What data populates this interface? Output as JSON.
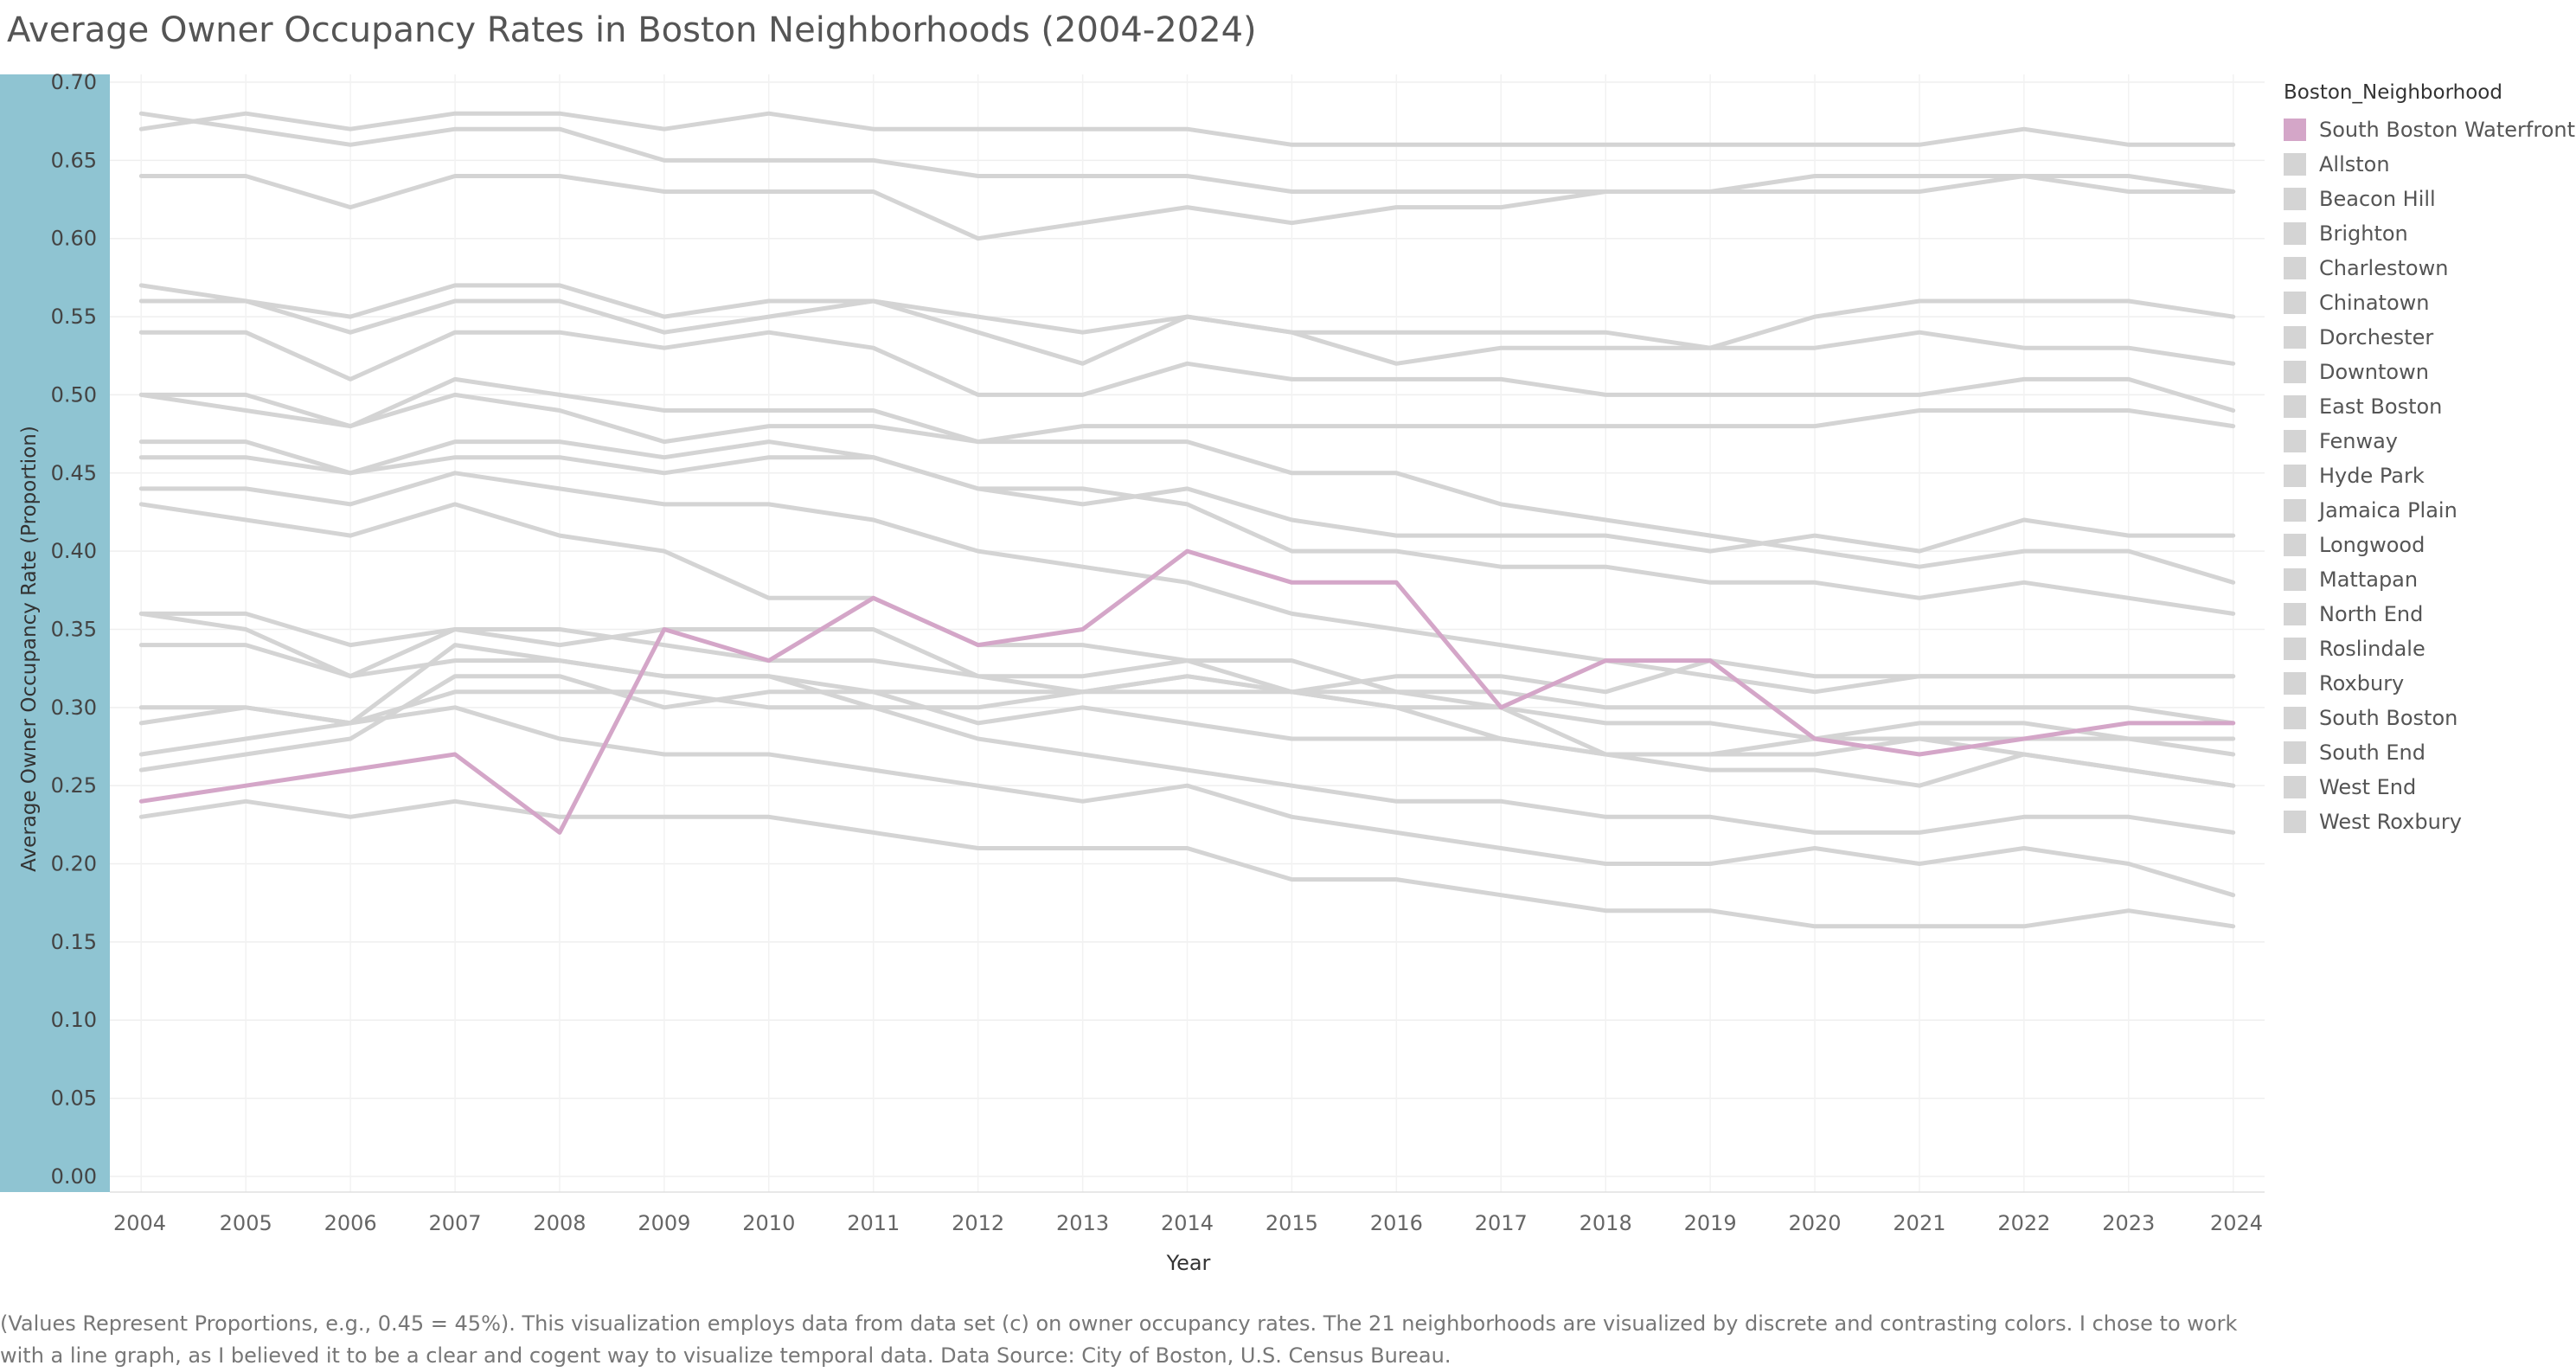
{
  "title": "Average Owner Occupancy Rates in Boston Neighborhoods (2004-2024)",
  "footnote": "(Values Represent Proportions, e.g., 0.45 = 45%). This visualization employs data from data set (c) on owner occupancy rates. The 21 neighborhoods are visualized by discrete and contrasting colors. I chose to work with a line graph, as I believed it to be a clear and cogent way to visualize temporal data. Data Source: City of Boston, U.S. Census Bureau.",
  "colors": {
    "highlight": "#d4a6c8",
    "muted": "#d4d4d4",
    "axis_band": "#8fc4d2"
  },
  "legend": {
    "title": "Boston_Neighborhood",
    "items": [
      "South Boston Waterfront",
      "Allston",
      "Beacon Hill",
      "Brighton",
      "Charlestown",
      "Chinatown",
      "Dorchester",
      "Downtown",
      "East Boston",
      "Fenway",
      "Hyde Park",
      "Jamaica Plain",
      "Longwood",
      "Mattapan",
      "North End",
      "Roslindale",
      "Roxbury",
      "South Boston",
      "South End",
      "West End",
      "West Roxbury"
    ]
  },
  "chart_data": {
    "type": "line",
    "title": "Average Owner Occupancy Rates in Boston Neighborhoods (2004-2024)",
    "xlabel": "Year",
    "ylabel": "Average Owner Occupancy Rate (Proportion)",
    "x": [
      2004,
      2005,
      2006,
      2007,
      2008,
      2009,
      2010,
      2011,
      2012,
      2013,
      2014,
      2015,
      2016,
      2017,
      2018,
      2019,
      2020,
      2021,
      2022,
      2023,
      2024
    ],
    "x_ticks": [
      "2004",
      "2005",
      "2006",
      "2007",
      "2008",
      "2009",
      "2010",
      "2011",
      "2012",
      "2013",
      "2014",
      "2015",
      "2016",
      "2017",
      "2018",
      "2019",
      "2020",
      "2021",
      "2022",
      "2023",
      "2024"
    ],
    "y_ticks": [
      "0.00",
      "0.05",
      "0.10",
      "0.15",
      "0.20",
      "0.25",
      "0.30",
      "0.35",
      "0.40",
      "0.45",
      "0.50",
      "0.55",
      "0.60",
      "0.65",
      "0.70"
    ],
    "xlim": [
      2003.7,
      2024.3
    ],
    "ylim": [
      -0.01,
      0.705
    ],
    "grid": true,
    "legend_position": "right",
    "highlighted_series": "South Boston Waterfront",
    "series": [
      {
        "name": "South Boston Waterfront",
        "values": [
          0.24,
          0.25,
          0.26,
          0.27,
          0.22,
          0.35,
          0.33,
          0.37,
          0.34,
          0.35,
          0.4,
          0.38,
          0.38,
          0.3,
          0.33,
          0.33,
          0.28,
          0.27,
          0.28,
          0.29,
          0.29
        ]
      },
      {
        "name": "Allston",
        "values": [
          0.27,
          0.28,
          0.29,
          0.3,
          0.28,
          0.27,
          0.27,
          0.26,
          0.25,
          0.24,
          0.25,
          0.23,
          0.22,
          0.21,
          0.2,
          0.2,
          0.21,
          0.2,
          0.21,
          0.2,
          0.18
        ]
      },
      {
        "name": "Beacon Hill",
        "values": [
          0.36,
          0.35,
          0.32,
          0.35,
          0.35,
          0.34,
          0.33,
          0.33,
          0.32,
          0.32,
          0.33,
          0.31,
          0.3,
          0.28,
          0.27,
          0.27,
          0.27,
          0.28,
          0.27,
          0.26,
          0.25
        ]
      },
      {
        "name": "Brighton",
        "values": [
          0.23,
          0.24,
          0.23,
          0.24,
          0.23,
          0.23,
          0.23,
          0.22,
          0.21,
          0.21,
          0.21,
          0.19,
          0.19,
          0.18,
          0.17,
          0.17,
          0.16,
          0.16,
          0.16,
          0.17,
          0.16
        ]
      },
      {
        "name": "Charlestown",
        "values": [
          0.44,
          0.44,
          0.43,
          0.45,
          0.44,
          0.43,
          0.43,
          0.42,
          0.4,
          0.39,
          0.38,
          0.36,
          0.35,
          0.34,
          0.33,
          0.32,
          0.31,
          0.32,
          0.32,
          0.32,
          0.32
        ]
      },
      {
        "name": "Chinatown",
        "values": [
          0.3,
          0.3,
          0.29,
          0.34,
          0.33,
          0.32,
          0.32,
          0.31,
          0.31,
          0.31,
          0.31,
          0.31,
          0.31,
          0.31,
          0.3,
          0.3,
          0.3,
          0.3,
          0.3,
          0.3,
          0.29
        ]
      },
      {
        "name": "Dorchester",
        "values": [
          0.46,
          0.46,
          0.45,
          0.46,
          0.46,
          0.45,
          0.46,
          0.46,
          0.44,
          0.43,
          0.44,
          0.42,
          0.41,
          0.41,
          0.41,
          0.4,
          0.41,
          0.4,
          0.42,
          0.41,
          0.41
        ]
      },
      {
        "name": "Downtown",
        "values": [
          0.29,
          0.3,
          0.29,
          0.31,
          0.31,
          0.31,
          0.3,
          0.3,
          0.3,
          0.31,
          0.32,
          0.31,
          0.32,
          0.32,
          0.31,
          0.33,
          0.32,
          0.32,
          0.32,
          0.32,
          0.32
        ]
      },
      {
        "name": "East Boston",
        "values": [
          0.34,
          0.34,
          0.32,
          0.33,
          0.33,
          0.32,
          0.32,
          0.3,
          0.28,
          0.27,
          0.26,
          0.25,
          0.24,
          0.24,
          0.23,
          0.23,
          0.22,
          0.22,
          0.23,
          0.23,
          0.22
        ]
      },
      {
        "name": "Fenway",
        "values": [
          0.26,
          0.27,
          0.28,
          0.32,
          0.32,
          0.3,
          0.31,
          0.31,
          0.29,
          0.3,
          0.29,
          0.28,
          0.28,
          0.28,
          0.27,
          0.26,
          0.26,
          0.25,
          0.27,
          0.26,
          0.25
        ]
      },
      {
        "name": "Hyde Park",
        "values": [
          0.64,
          0.64,
          0.62,
          0.64,
          0.64,
          0.63,
          0.63,
          0.63,
          0.6,
          0.61,
          0.62,
          0.61,
          0.62,
          0.62,
          0.63,
          0.63,
          0.64,
          0.64,
          0.64,
          0.64,
          0.63
        ]
      },
      {
        "name": "Jamaica Plain",
        "values": [
          0.47,
          0.47,
          0.45,
          0.47,
          0.47,
          0.46,
          0.47,
          0.46,
          0.44,
          0.44,
          0.43,
          0.4,
          0.4,
          0.39,
          0.39,
          0.38,
          0.38,
          0.37,
          0.38,
          0.37,
          0.36
        ]
      },
      {
        "name": "Longwood",
        "values": [
          0.36,
          0.36,
          0.34,
          0.35,
          0.34,
          0.35,
          0.35,
          0.35,
          0.32,
          0.31,
          0.32,
          0.31,
          0.3,
          0.3,
          0.29,
          0.29,
          0.28,
          0.29,
          0.29,
          0.28,
          0.27
        ]
      },
      {
        "name": "Mattapan",
        "values": [
          0.54,
          0.54,
          0.51,
          0.54,
          0.54,
          0.53,
          0.54,
          0.53,
          0.5,
          0.5,
          0.52,
          0.51,
          0.51,
          0.51,
          0.5,
          0.5,
          0.5,
          0.5,
          0.51,
          0.51,
          0.49
        ]
      },
      {
        "name": "North End",
        "values": [
          0.43,
          0.42,
          0.41,
          0.43,
          0.41,
          0.4,
          0.37,
          0.37,
          0.34,
          0.34,
          0.33,
          0.33,
          0.31,
          0.3,
          0.27,
          0.27,
          0.28,
          0.28,
          0.28,
          0.28,
          0.28
        ]
      },
      {
        "name": "Roslindale",
        "values": [
          0.68,
          0.67,
          0.66,
          0.67,
          0.67,
          0.65,
          0.65,
          0.65,
          0.64,
          0.64,
          0.64,
          0.63,
          0.63,
          0.63,
          0.63,
          0.63,
          0.63,
          0.63,
          0.64,
          0.63,
          0.63
        ]
      },
      {
        "name": "Roxbury",
        "values": [
          0.5,
          0.49,
          0.48,
          0.5,
          0.49,
          0.47,
          0.48,
          0.48,
          0.47,
          0.48,
          0.48,
          0.48,
          0.48,
          0.48,
          0.48,
          0.48,
          0.48,
          0.49,
          0.49,
          0.49,
          0.48
        ]
      },
      {
        "name": "South Boston",
        "values": [
          0.5,
          0.5,
          0.48,
          0.51,
          0.5,
          0.49,
          0.49,
          0.49,
          0.47,
          0.47,
          0.47,
          0.45,
          0.45,
          0.43,
          0.42,
          0.41,
          0.4,
          0.39,
          0.4,
          0.4,
          0.38
        ]
      },
      {
        "name": "South End",
        "values": [
          0.56,
          0.56,
          0.54,
          0.56,
          0.56,
          0.54,
          0.55,
          0.56,
          0.54,
          0.52,
          0.55,
          0.54,
          0.54,
          0.54,
          0.54,
          0.53,
          0.55,
          0.56,
          0.56,
          0.56,
          0.55
        ]
      },
      {
        "name": "West End",
        "values": [
          0.57,
          0.56,
          0.55,
          0.57,
          0.57,
          0.55,
          0.56,
          0.56,
          0.55,
          0.54,
          0.55,
          0.54,
          0.52,
          0.53,
          0.53,
          0.53,
          0.53,
          0.54,
          0.53,
          0.53,
          0.52
        ]
      },
      {
        "name": "West Roxbury",
        "values": [
          0.67,
          0.68,
          0.67,
          0.68,
          0.68,
          0.67,
          0.68,
          0.67,
          0.67,
          0.67,
          0.67,
          0.66,
          0.66,
          0.66,
          0.66,
          0.66,
          0.66,
          0.66,
          0.67,
          0.66,
          0.66
        ]
      }
    ]
  }
}
